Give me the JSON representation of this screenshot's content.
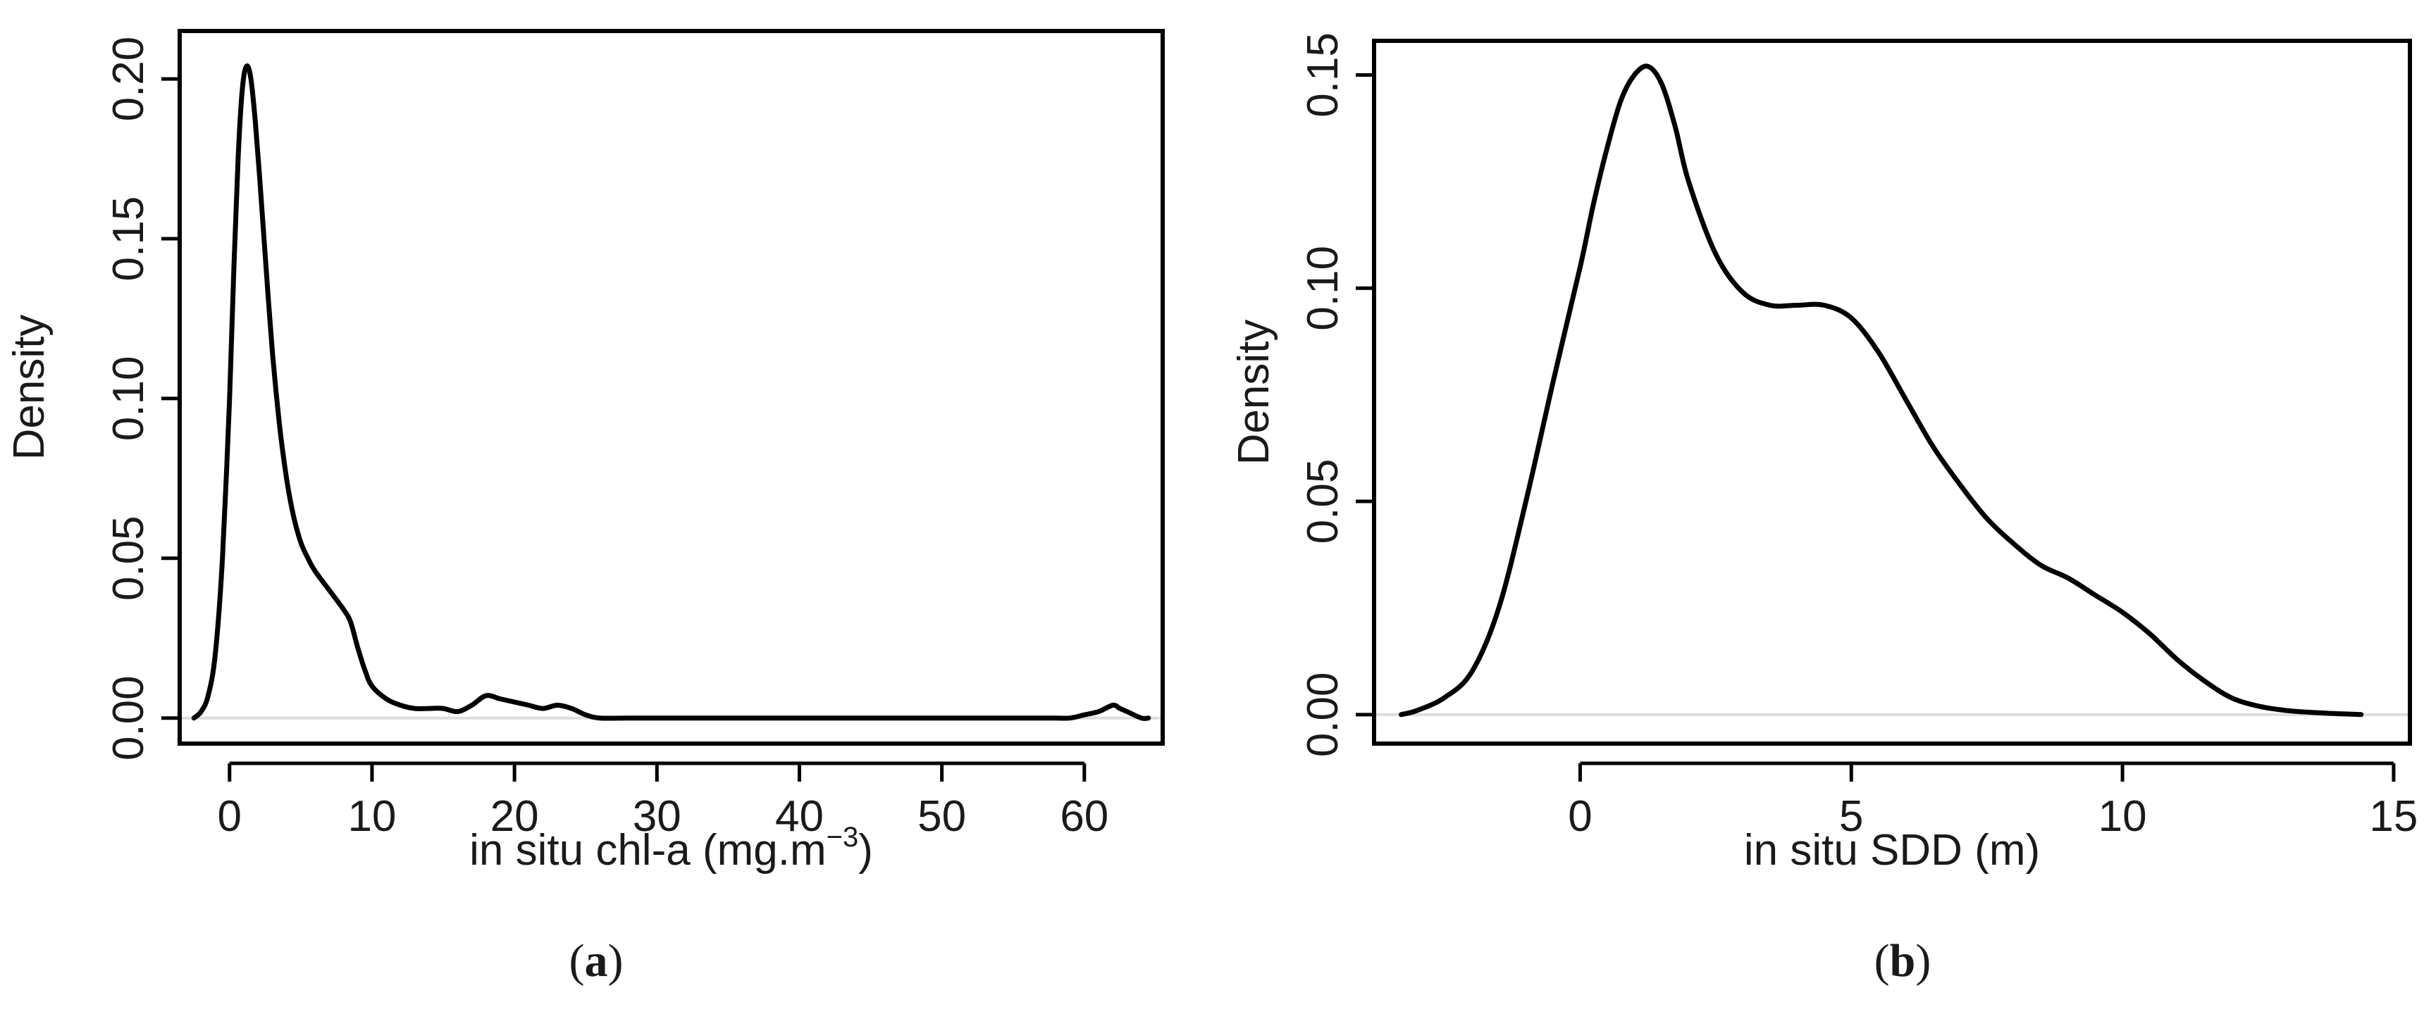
{
  "chart_data": [
    {
      "type": "line",
      "panel_label": "a",
      "xlabel": "in situ chl-a (mg.m",
      "xlabel_superscript": "−3",
      "xlabel_suffix": ")",
      "ylabel": "Density",
      "xlim": [
        -3.5,
        65.5
      ],
      "ylim": [
        -0.008,
        0.215
      ],
      "xticks": [
        0,
        10,
        20,
        30,
        40,
        50,
        60
      ],
      "xtick_labels": [
        "0",
        "10",
        "20",
        "30",
        "40",
        "50",
        "60"
      ],
      "yticks": [
        0.0,
        0.05,
        0.1,
        0.15,
        0.2
      ],
      "ytick_labels": [
        "0.00",
        "0.05",
        "0.10",
        "0.15",
        "0.20"
      ],
      "grid": false,
      "zero_line": true,
      "series": [
        {
          "x": [
            -2.5,
            -2,
            -1.5,
            -1,
            -0.5,
            0,
            0.3,
            0.6,
            0.9,
            1.2,
            1.5,
            1.8,
            2.1,
            2.5,
            3,
            3.5,
            4,
            4.5,
            5,
            5.5,
            6,
            7,
            8,
            8.5,
            9,
            9.5,
            10,
            11,
            12,
            13,
            14,
            15,
            16,
            17,
            18,
            19,
            20,
            21,
            22,
            23,
            24,
            25,
            26,
            28,
            30,
            35,
            40,
            45,
            50,
            55,
            58,
            59,
            60,
            61,
            62,
            62.5,
            63,
            64,
            64.5
          ],
          "y": [
            0.0,
            0.002,
            0.007,
            0.02,
            0.05,
            0.1,
            0.14,
            0.175,
            0.197,
            0.204,
            0.2,
            0.187,
            0.17,
            0.145,
            0.115,
            0.092,
            0.075,
            0.063,
            0.055,
            0.05,
            0.046,
            0.04,
            0.034,
            0.03,
            0.022,
            0.015,
            0.01,
            0.006,
            0.004,
            0.003,
            0.003,
            0.003,
            0.002,
            0.004,
            0.007,
            0.006,
            0.005,
            0.004,
            0.003,
            0.004,
            0.003,
            0.001,
            0.0,
            0.0,
            0.0,
            0.0,
            0.0,
            0.0,
            0.0,
            0.0,
            0.0,
            0.0,
            0.001,
            0.002,
            0.004,
            0.003,
            0.002,
            0.0,
            0.0
          ]
        }
      ]
    },
    {
      "type": "line",
      "panel_label": "b",
      "xlabel": "in situ SDD (m)",
      "ylabel": "Density",
      "xlim": [
        -3.8,
        15.3
      ],
      "ylim": [
        -0.0068,
        0.158
      ],
      "xticks": [
        0,
        5,
        10,
        15
      ],
      "xtick_labels": [
        "0",
        "5",
        "10",
        "15"
      ],
      "yticks": [
        0.0,
        0.05,
        0.1,
        0.15
      ],
      "ytick_labels": [
        "0.00",
        "0.05",
        "0.10",
        "0.15"
      ],
      "grid": false,
      "zero_line": true,
      "series": [
        {
          "x": [
            -3.3,
            -3,
            -2.5,
            -2,
            -1.5,
            -1,
            -0.5,
            0,
            0.25,
            0.5,
            0.75,
            1,
            1.25,
            1.5,
            1.75,
            2,
            2.5,
            3,
            3.5,
            4,
            4.5,
            5,
            5.5,
            6,
            6.5,
            7,
            7.5,
            8,
            8.5,
            9,
            9.5,
            10,
            10.5,
            11,
            11.5,
            12,
            12.5,
            13,
            13.5,
            14,
            14.4
          ],
          "y": [
            0.0,
            0.001,
            0.004,
            0.01,
            0.025,
            0.05,
            0.078,
            0.105,
            0.12,
            0.133,
            0.144,
            0.15,
            0.152,
            0.148,
            0.138,
            0.125,
            0.108,
            0.099,
            0.096,
            0.096,
            0.096,
            0.093,
            0.085,
            0.074,
            0.063,
            0.054,
            0.046,
            0.04,
            0.035,
            0.032,
            0.028,
            0.024,
            0.019,
            0.013,
            0.008,
            0.004,
            0.002,
            0.001,
            0.0005,
            0.0002,
            0.0
          ]
        }
      ]
    }
  ]
}
